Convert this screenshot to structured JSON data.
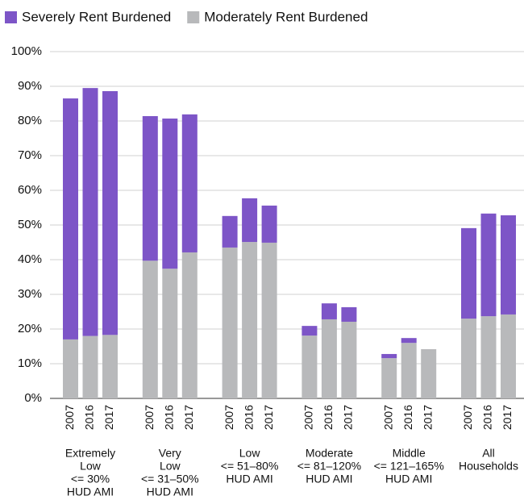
{
  "chart_data": {
    "type": "stacked_bar",
    "groups": [
      {
        "name": [
          "Extremely",
          "Low",
          "<= 30%",
          "HUD AMI"
        ],
        "categories": [
          "2007",
          "2016",
          "2017"
        ]
      },
      {
        "name": [
          "Very",
          "Low",
          "<= 31–50%",
          "HUD AMI"
        ],
        "categories": [
          "2007",
          "2016",
          "2017"
        ]
      },
      {
        "name": [
          "Low",
          "<= 51–80%",
          "HUD AMI"
        ],
        "categories": [
          "2007",
          "2016",
          "2017"
        ]
      },
      {
        "name": [
          "Moderate",
          "<= 81–120%",
          "HUD AMI"
        ],
        "categories": [
          "2007",
          "2016",
          "2017"
        ]
      },
      {
        "name": [
          "Middle",
          "<= 121–165%",
          "HUD AMI"
        ],
        "categories": [
          "2007",
          "2016",
          "2017"
        ]
      },
      {
        "name": [
          "All",
          "Households"
        ],
        "categories": [
          "2007",
          "2016",
          "2017"
        ]
      }
    ],
    "series": [
      {
        "name": "Severely Rent Burdened",
        "color": "#7d55c7",
        "values": [
          [
            69.5,
            71.5,
            70.3
          ],
          [
            41.7,
            43.3,
            39.8
          ],
          [
            9.1,
            12.6,
            10.7
          ],
          [
            2.8,
            4.6,
            4.2
          ],
          [
            1.2,
            1.4,
            0
          ],
          [
            26.1,
            29.6,
            28.6
          ]
        ]
      },
      {
        "name": "Moderately Rent Burdened",
        "color": "#b8b9bb",
        "values": [
          [
            17,
            18,
            18.3
          ],
          [
            39.7,
            37.4,
            42.1
          ],
          [
            43.5,
            45.1,
            44.9
          ],
          [
            18.1,
            22.8,
            22.1
          ],
          [
            11.6,
            16,
            14.2
          ],
          [
            23,
            23.7,
            24.2
          ]
        ]
      }
    ],
    "ylim": [
      0,
      100
    ],
    "yticks": [
      {
        "value": 0,
        "label": "0%"
      },
      {
        "value": 10,
        "label": "10%"
      },
      {
        "value": 20,
        "label": "20%"
      },
      {
        "value": 30,
        "label": "30%"
      },
      {
        "value": 40,
        "label": "40%"
      },
      {
        "value": 50,
        "label": "50%"
      },
      {
        "value": 60,
        "label": "60%"
      },
      {
        "value": 70,
        "label": "70%"
      },
      {
        "value": 80,
        "label": "80%"
      },
      {
        "value": 90,
        "label": "90%"
      },
      {
        "value": 100,
        "label": "100%"
      }
    ],
    "grid": true
  }
}
